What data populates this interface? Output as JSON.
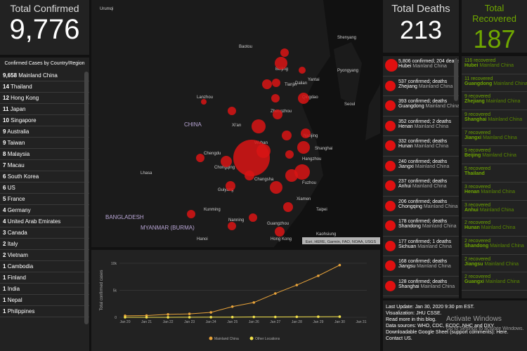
{
  "confirmed": {
    "title": "Total Confirmed",
    "value": "9,776"
  },
  "deaths": {
    "title": "Total Deaths",
    "value": "213"
  },
  "recovered": {
    "title": "Total Recovered",
    "value": "187"
  },
  "country_list": {
    "title": "Confirmed Cases by Country/Region",
    "rows": [
      {
        "count": "9,658",
        "name": "Mainland China"
      },
      {
        "count": "14",
        "name": "Thailand"
      },
      {
        "count": "12",
        "name": "Hong Kong"
      },
      {
        "count": "11",
        "name": "Japan"
      },
      {
        "count": "10",
        "name": "Singapore"
      },
      {
        "count": "9",
        "name": "Australia"
      },
      {
        "count": "9",
        "name": "Taiwan"
      },
      {
        "count": "8",
        "name": "Malaysia"
      },
      {
        "count": "7",
        "name": "Macau"
      },
      {
        "count": "6",
        "name": "South Korea"
      },
      {
        "count": "6",
        "name": "US"
      },
      {
        "count": "5",
        "name": "France"
      },
      {
        "count": "4",
        "name": "Germany"
      },
      {
        "count": "4",
        "name": "United Arab Emirates"
      },
      {
        "count": "3",
        "name": "Canada"
      },
      {
        "count": "2",
        "name": "Italy"
      },
      {
        "count": "2",
        "name": "Vietnam"
      },
      {
        "count": "1",
        "name": "Cambodia"
      },
      {
        "count": "1",
        "name": "Finland"
      },
      {
        "count": "1",
        "name": "India"
      },
      {
        "count": "1",
        "name": "Nepal"
      },
      {
        "count": "1",
        "name": "Philippines"
      }
    ]
  },
  "deaths_list": [
    {
      "text": "5,806 confirmed; 204 deaths",
      "place": "Hubei",
      "country": "Mainland China"
    },
    {
      "text": "537 confirmed; deaths",
      "place": "Zhejiang",
      "country": "Mainland China"
    },
    {
      "text": "393 confirmed; deaths",
      "place": "Guangdong",
      "country": "Mainland China"
    },
    {
      "text": "352 confirmed; 2 deaths",
      "place": "Henan",
      "country": "Mainland China"
    },
    {
      "text": "332 confirmed; deaths",
      "place": "Hunan",
      "country": "Mainland China"
    },
    {
      "text": "240 confirmed; deaths",
      "place": "Jiangxi",
      "country": "Mainland China"
    },
    {
      "text": "237 confirmed; deaths",
      "place": "Anhui",
      "country": "Mainland China"
    },
    {
      "text": "206 confirmed; deaths",
      "place": "Chongqing",
      "country": "Mainland China"
    },
    {
      "text": "178 confirmed; deaths",
      "place": "Shandong",
      "country": "Mainland China"
    },
    {
      "text": "177 confirmed; 1 deaths",
      "place": "Sichuan",
      "country": "Mainland China"
    },
    {
      "text": "168 confirmed; deaths",
      "place": "Jiangsu",
      "country": "Mainland China"
    },
    {
      "text": "128 confirmed; deaths",
      "place": "Shanghai",
      "country": "Mainland China"
    }
  ],
  "recovered_list": [
    {
      "text": "116 recovered",
      "place": "Hubei",
      "country": "Mainland China"
    },
    {
      "text": "11 recovered",
      "place": "Guangdong",
      "country": "Mainland China"
    },
    {
      "text": "9 recovered",
      "place": "Zhejiang",
      "country": "Mainland China"
    },
    {
      "text": "9 recovered",
      "place": "Shanghai",
      "country": "Mainland China"
    },
    {
      "text": "7 recovered",
      "place": "Jiangxi",
      "country": "Mainland China"
    },
    {
      "text": "5 recovered",
      "place": "Beijing",
      "country": "Mainland China"
    },
    {
      "text": "5 recovered",
      "place": "Thailand",
      "country": ""
    },
    {
      "text": "3 recovered",
      "place": "Henan",
      "country": "Mainland China"
    },
    {
      "text": "3 recovered",
      "place": "Anhui",
      "country": "Mainland China"
    },
    {
      "text": "2 recovered",
      "place": "Hunan",
      "country": "Mainland China"
    },
    {
      "text": "2 recovered",
      "place": "Shandong",
      "country": "Mainland China"
    },
    {
      "text": "2 recovered",
      "place": "Jiangsu",
      "country": "Mainland China"
    },
    {
      "text": "2 recovered",
      "place": "Guangxi",
      "country": "Mainland China"
    }
  ],
  "map": {
    "attribution": "Esri, HERE, Garmin, FAO, NOAA, USGS",
    "labels": [
      "Urumqi",
      "Baotou",
      "Beijing",
      "Tianjin",
      "Shenyang",
      "Pyongyang",
      "Seoul",
      "Dalian",
      "Yantai",
      "Qingdao",
      "Lanzhou",
      "Xi'an",
      "Zhengzhou",
      "CHINA",
      "Nanjing",
      "Shanghai",
      "Wuhan",
      "Hangzhou",
      "Chengdu",
      "Chongqing",
      "Changsha",
      "Lhasa",
      "Guiyang",
      "Kunming",
      "Nanning",
      "Guangzhou",
      "Hong Kong",
      "Taipei",
      "Xiamen",
      "Fuzhou",
      "BANGLADESH",
      "MYANMAR (BURMA)",
      "Hanoi",
      "Kaohsiung"
    ]
  },
  "info": {
    "lines": [
      "Last Update: Jan 30, 2020 9:30 pm EST.",
      "Visualization: JHU CSSE.",
      "Read more in this blog.",
      "Data sources: WHO, CDC, ECDC, NHC and DXY.",
      "Downloadable Google Sheet (support comments): Here.",
      "Contact US."
    ],
    "watermark": "Activate Windows",
    "watermark_sub": "Go to Settings to activate Windows."
  },
  "chart_data": {
    "type": "line",
    "y_label": "Total confirmed cases",
    "categories": [
      "Jan 20",
      "Jan 21",
      "Jan 22",
      "Jan 23",
      "Jan 24",
      "Jan 25",
      "Jan 26",
      "Jan 27",
      "Jan 28",
      "Jan 29",
      "Jan 30",
      "Jan 31"
    ],
    "series": [
      {
        "name": "Mainland China",
        "color": "#e8a33a",
        "values": [
          278,
          326,
          547,
          639,
          916,
          1979,
          2737,
          4409,
          5970,
          7678,
          9658,
          null
        ]
      },
      {
        "name": "Other Locations",
        "color": "#f2e14a",
        "values": [
          4,
          6,
          8,
          14,
          25,
          40,
          57,
          64,
          87,
          105,
          118,
          null
        ]
      }
    ],
    "ylim": [
      0,
      10000
    ],
    "yticks": [
      0,
      {
        "value": 5000,
        "label": "5k"
      },
      {
        "value": 10000,
        "label": "10k"
      }
    ],
    "grid": true
  }
}
